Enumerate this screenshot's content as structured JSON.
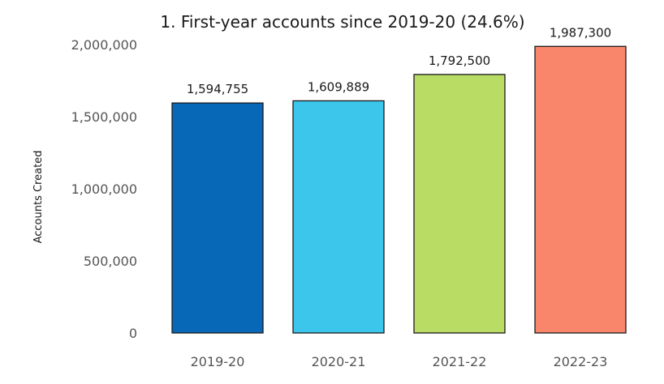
{
  "chart_data": {
    "type": "bar",
    "title": "1. First-year accounts since 2019-20 (24.6%)",
    "xlabel": "",
    "ylabel": "Accounts Created",
    "categories": [
      "2019-20",
      "2020-21",
      "2021-22",
      "2022-23"
    ],
    "values": [
      1594755,
      1609889,
      1792500,
      1987300
    ],
    "data_labels": [
      "1,594,755",
      "1,609,889",
      "1,792,500",
      "1,987,300"
    ],
    "colors": [
      "#0868b8",
      "#3cc6ec",
      "#b9dc64",
      "#f9856b"
    ],
    "ylim": [
      0,
      2000000
    ],
    "yticks": [
      0,
      500000,
      1000000,
      1500000,
      2000000
    ],
    "ytick_labels": [
      "0",
      "500,000",
      "1,000,000",
      "1,500,000",
      "2,000,000"
    ],
    "grid": false,
    "legend": "none"
  }
}
